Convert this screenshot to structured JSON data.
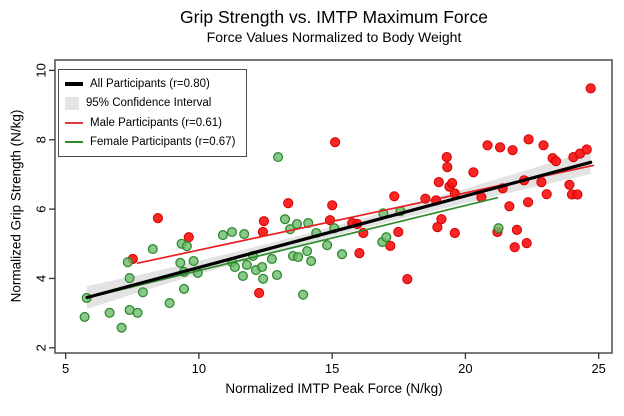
{
  "title": "Grip Strength vs. IMTP Maximum Force",
  "subtitle": "Force Values Normalized to Body Weight",
  "legend": {
    "items": [
      {
        "label": "All Participants (r=0.80)",
        "swatch": "line",
        "color": "#000000",
        "thickness": 4
      },
      {
        "label": "95% Confidence Interval",
        "swatch": "box",
        "color": "#e4e4e4",
        "thickness": 0
      },
      {
        "label": "Male Participants (r=0.61)",
        "swatch": "line",
        "color": "#e23b3b",
        "thickness": 2
      },
      {
        "label": "Female Participants (r=0.67)",
        "swatch": "line",
        "color": "#2e8b2e",
        "thickness": 2
      }
    ]
  },
  "chart_data": {
    "type": "scatter",
    "title": "Grip Strength vs. IMTP Maximum Force",
    "subtitle": "Force Values Normalized to Body Weight",
    "xlabel": "Normalized IMTP Peak Force (N/kg)",
    "ylabel": "Normalized Grip Strength (N/kg)",
    "xlim": [
      4.6,
      25.5
    ],
    "ylim": [
      1.85,
      10.3
    ],
    "xticks": [
      5,
      10,
      15,
      20,
      25
    ],
    "yticks": [
      2,
      4,
      6,
      8,
      10
    ],
    "grid": false,
    "legend_position": "top-left",
    "series": [
      {
        "name": "Male Participants",
        "r": 0.61,
        "marker_fill": "#f81414",
        "marker_edge": "#d80000",
        "points": [
          [
            7.52,
            4.56
          ],
          [
            8.46,
            5.74
          ],
          [
            9.62,
            5.19
          ],
          [
            12.26,
            3.58
          ],
          [
            12.44,
            5.65
          ],
          [
            12.4,
            5.34
          ],
          [
            13.35,
            6.17
          ],
          [
            14.92,
            5.68
          ],
          [
            15.0,
            6.11
          ],
          [
            15.11,
            7.93
          ],
          [
            15.75,
            5.6
          ],
          [
            15.94,
            5.57
          ],
          [
            16.02,
            4.73
          ],
          [
            16.17,
            5.31
          ],
          [
            17.18,
            4.94
          ],
          [
            17.48,
            5.34
          ],
          [
            17.82,
            3.98
          ],
          [
            17.33,
            6.37
          ],
          [
            18.5,
            6.3
          ],
          [
            18.9,
            6.25
          ],
          [
            18.95,
            5.48
          ],
          [
            19.0,
            6.78
          ],
          [
            19.1,
            5.71
          ],
          [
            19.3,
            7.5
          ],
          [
            19.32,
            7.21
          ],
          [
            19.4,
            6.65
          ],
          [
            19.5,
            6.75
          ],
          [
            19.6,
            6.45
          ],
          [
            19.6,
            5.31
          ],
          [
            20.3,
            7.06
          ],
          [
            20.6,
            6.34
          ],
          [
            20.83,
            7.84
          ],
          [
            21.2,
            5.34
          ],
          [
            21.3,
            7.78
          ],
          [
            21.4,
            6.6
          ],
          [
            21.65,
            6.08
          ],
          [
            21.77,
            7.7
          ],
          [
            21.85,
            4.9
          ],
          [
            21.93,
            5.4
          ],
          [
            22.2,
            6.83
          ],
          [
            22.3,
            5.02
          ],
          [
            22.35,
            6.2
          ],
          [
            22.37,
            8.01
          ],
          [
            22.85,
            6.78
          ],
          [
            22.93,
            7.84
          ],
          [
            23.05,
            6.43
          ],
          [
            23.27,
            7.47
          ],
          [
            23.4,
            7.38
          ],
          [
            23.9,
            6.7
          ],
          [
            24.0,
            6.42
          ],
          [
            24.2,
            6.42
          ],
          [
            24.05,
            7.5
          ],
          [
            24.3,
            7.6
          ],
          [
            24.55,
            7.72
          ],
          [
            24.7,
            9.48
          ]
        ]
      },
      {
        "name": "Female Participants",
        "r": 0.67,
        "marker_fill": "#6dbb6d",
        "marker_edge": "#2f8a2f",
        "points": [
          [
            5.71,
            2.89
          ],
          [
            5.79,
            3.44
          ],
          [
            6.65,
            3.01
          ],
          [
            7.1,
            2.58
          ],
          [
            7.33,
            4.47
          ],
          [
            7.4,
            3.09
          ],
          [
            7.4,
            4.01
          ],
          [
            7.7,
            3.01
          ],
          [
            7.9,
            3.6
          ],
          [
            8.27,
            4.85
          ],
          [
            8.9,
            3.29
          ],
          [
            9.3,
            4.45
          ],
          [
            9.35,
            5.0
          ],
          [
            9.44,
            3.7
          ],
          [
            9.44,
            4.19
          ],
          [
            9.55,
            4.93
          ],
          [
            9.8,
            4.5
          ],
          [
            9.96,
            4.16
          ],
          [
            10.9,
            5.25
          ],
          [
            11.24,
            5.34
          ],
          [
            11.24,
            4.47
          ],
          [
            11.35,
            4.33
          ],
          [
            11.65,
            4.07
          ],
          [
            11.7,
            5.28
          ],
          [
            11.8,
            4.39
          ],
          [
            12.03,
            4.65
          ],
          [
            12.14,
            4.24
          ],
          [
            12.37,
            4.33
          ],
          [
            12.41,
            3.99
          ],
          [
            12.74,
            4.56
          ],
          [
            12.93,
            4.1
          ],
          [
            12.97,
            7.5
          ],
          [
            13.23,
            5.71
          ],
          [
            13.42,
            5.42
          ],
          [
            13.53,
            4.65
          ],
          [
            13.68,
            5.57
          ],
          [
            13.72,
            4.62
          ],
          [
            13.91,
            3.53
          ],
          [
            14.06,
            4.79
          ],
          [
            14.1,
            5.6
          ],
          [
            14.21,
            4.5
          ],
          [
            14.4,
            5.31
          ],
          [
            14.81,
            4.96
          ],
          [
            15.08,
            5.45
          ],
          [
            15.37,
            4.7
          ],
          [
            16.88,
            5.05
          ],
          [
            16.92,
            5.88
          ],
          [
            17.03,
            5.19
          ],
          [
            17.56,
            5.94
          ],
          [
            21.24,
            5.45
          ]
        ]
      }
    ],
    "fit_lines": [
      {
        "name": "All Participants (r=0.80)",
        "color": "#000000",
        "width": 3.2,
        "x": [
          5.8,
          24.7
        ],
        "y": [
          3.45,
          7.35
        ]
      },
      {
        "name": "Male Participants (r=0.61)",
        "color": "#e81f1f",
        "width": 1.7,
        "x": [
          7.7,
          24.8
        ],
        "y": [
          4.44,
          7.26
        ]
      },
      {
        "name": "Female Participants (r=0.67)",
        "color": "#2e8b2e",
        "width": 1.7,
        "x": [
          5.8,
          21.2
        ],
        "y": [
          3.44,
          6.33
        ]
      }
    ],
    "ci_band": {
      "name": "95% Confidence Interval",
      "color": "#dedede",
      "opacity": 0.85,
      "around": "All Participants (r=0.80)",
      "x": [
        5.8,
        8.0,
        10.0,
        12.0,
        14.0,
        15.0,
        16.0,
        18.0,
        20.0,
        22.0,
        24.7
      ],
      "half_width": [
        0.33,
        0.24,
        0.19,
        0.16,
        0.145,
        0.14,
        0.145,
        0.17,
        0.21,
        0.26,
        0.34
      ]
    }
  }
}
